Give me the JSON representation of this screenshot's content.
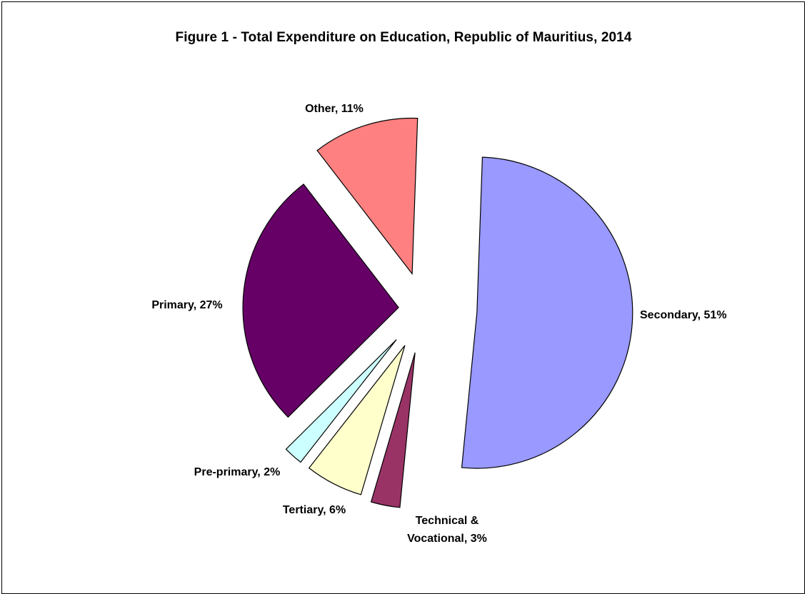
{
  "chart_data": {
    "type": "pie",
    "title": "Figure 1 - Total Expenditure on Education, Republic of Mauritius, 2014",
    "exploded": true,
    "slices": [
      {
        "key": "secondary",
        "label": "Secondary, 51%",
        "name": "Secondary",
        "value": 51,
        "color": "#9999ff"
      },
      {
        "key": "technical",
        "label_lines": [
          "Technical &",
          "Vocational, 3%"
        ],
        "name": "Technical & Vocational",
        "value": 3,
        "color": "#993366"
      },
      {
        "key": "tertiary",
        "label": "Tertiary, 6%",
        "name": "Tertiary",
        "value": 6,
        "color": "#ffffcc"
      },
      {
        "key": "preprimary",
        "label": "Pre-primary, 2%",
        "name": "Pre-primary",
        "value": 2,
        "color": "#ccffff"
      },
      {
        "key": "primary",
        "label": "Primary, 27%",
        "name": "Primary",
        "value": 27,
        "color": "#660066"
      },
      {
        "key": "other",
        "label": "Other, 11%",
        "name": "Other",
        "value": 11,
        "color": "#ff8080"
      }
    ]
  }
}
